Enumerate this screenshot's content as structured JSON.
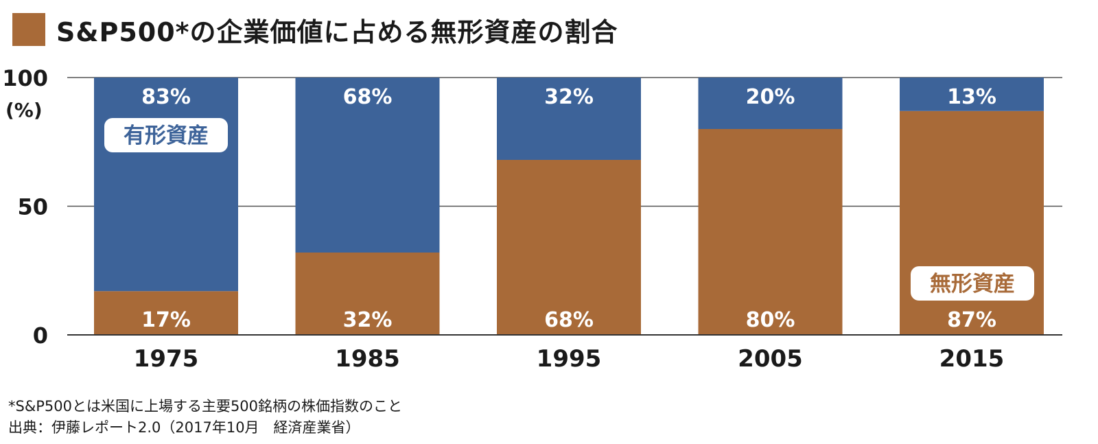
{
  "title": "S&P500*の企業価値に占める無形資産の割合",
  "footnotes": {
    "note": "*S&P500とは米国に上場する主要500銘柄の株価指数のこと",
    "source": "出典：伊藤レポート2.0（2017年10月　経済産業省）"
  },
  "colors": {
    "tangible": "#3d6399",
    "intangible": "#a86a38",
    "axis": "#333333",
    "grid": "#555555"
  },
  "chart_data": {
    "type": "bar",
    "stacked": true,
    "title": "S&P500*の企業価値に占める無形資産の割合",
    "categories": [
      "1975",
      "1985",
      "1995",
      "2005",
      "2015"
    ],
    "series": [
      {
        "name": "無形資産",
        "values": [
          17,
          32,
          68,
          80,
          87
        ],
        "labels": [
          "17%",
          "32%",
          "68%",
          "80%",
          "87%"
        ]
      },
      {
        "name": "有形資産",
        "values": [
          83,
          68,
          32,
          20,
          13
        ],
        "labels": [
          "83%",
          "68%",
          "32%",
          "20%",
          "13%"
        ]
      }
    ],
    "ylim": [
      0,
      100
    ],
    "yticks": [
      "0",
      "50",
      "100"
    ],
    "ylabel": "(%)",
    "xlabel": "",
    "grid": true,
    "legend": "inline labels on first (有形資産) and last (無形資産) bars"
  }
}
